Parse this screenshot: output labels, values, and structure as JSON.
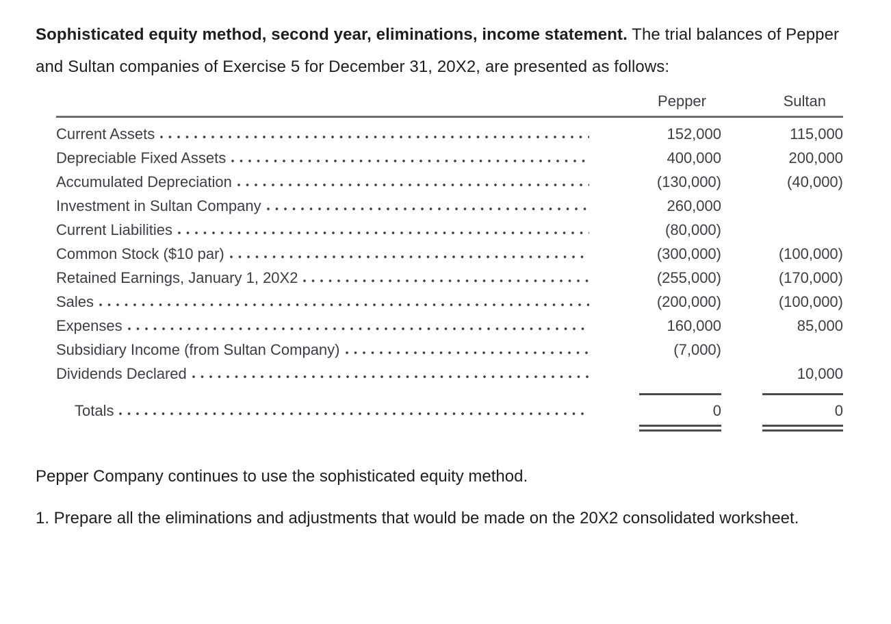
{
  "theme": {
    "text_color": "#1e1e1e",
    "table_text_color": "#3d3d45",
    "header_rule_color": "#6e6e70",
    "total_rule_color": "#4a4a4c"
  },
  "intro": {
    "bold": "Sophisticated equity method, second year, eliminations, income statement.",
    "text": " The trial balances of Pepper and Sultan companies of Exercise 5 for December 31, 20X2, are presented as follows:"
  },
  "table": {
    "columns": [
      "Pepper",
      "Sultan"
    ],
    "rows": [
      {
        "label": "Current Assets",
        "pepper": "152,000",
        "sultan": "115,000"
      },
      {
        "label": "Depreciable Fixed Assets",
        "pepper": "400,000",
        "sultan": "200,000"
      },
      {
        "label": "Accumulated Depreciation",
        "pepper": "(130,000)",
        "sultan": "(40,000)"
      },
      {
        "label": "Investment in Sultan Company",
        "pepper": "260,000",
        "sultan": ""
      },
      {
        "label": "Current Liabilities",
        "pepper": "(80,000)",
        "sultan": ""
      },
      {
        "label": "Common Stock ($10 par)",
        "pepper": "(300,000)",
        "sultan": "(100,000)"
      },
      {
        "label": "Retained Earnings, January 1, 20X2",
        "pepper": "(255,000)",
        "sultan": "(170,000)"
      },
      {
        "label": "Sales",
        "pepper": "(200,000)",
        "sultan": "(100,000)"
      },
      {
        "label": "Expenses",
        "pepper": "160,000",
        "sultan": "85,000"
      },
      {
        "label": "Subsidiary Income (from Sultan Company)",
        "pepper": "(7,000)",
        "sultan": ""
      },
      {
        "label": "Dividends Declared",
        "pepper": "",
        "sultan": "10,000"
      }
    ],
    "totals": {
      "label": "Totals",
      "pepper": "0",
      "sultan": "0"
    }
  },
  "note": "Pepper Company continues to use the sophisticated equity method.",
  "question": "1. Prepare all the eliminations and adjustments that would be made on the 20X2 consolidated worksheet."
}
